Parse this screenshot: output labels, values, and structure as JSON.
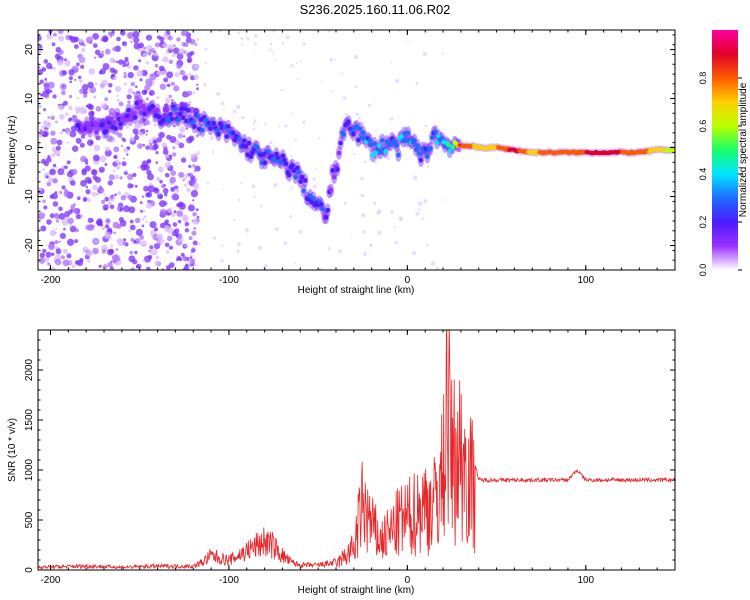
{
  "page_title": "S236.2025.160.11.06.R02",
  "colors": {
    "background": "#ffffff",
    "axis": "#000000",
    "snr_line": "#e8262a",
    "spectrogram_colormap": [
      "#ffffff",
      "#9b30ff",
      "#4a1cff",
      "#1f6bff",
      "#00e5ff",
      "#19ff6b",
      "#b9ff00",
      "#ffd000",
      "#ff5a00",
      "#e0002a",
      "#ff00a0"
    ]
  },
  "chart_data": [
    {
      "type": "heatmap",
      "title": "",
      "xlabel": "Height of straight line (km)",
      "ylabel": "Frequency (Hz)",
      "xlim": [
        -207,
        150
      ],
      "ylim": [
        -25,
        24
      ],
      "xticks": [
        -200,
        -100,
        0,
        100
      ],
      "yticks": [
        -20,
        -10,
        0,
        10,
        20
      ],
      "colorbar": {
        "label": "Normalized spectral amplitude",
        "range": [
          0.0,
          1.0
        ],
        "ticks": [
          0.0,
          0.2,
          0.4,
          0.6,
          0.8
        ]
      },
      "ridge": {
        "x": [
          -180,
          -170,
          -160,
          -150,
          -140,
          -130,
          -120,
          -110,
          -100,
          -90,
          -80,
          -70,
          -60,
          -55,
          -50,
          -45,
          -42,
          -38,
          -35,
          -32,
          -30,
          -25,
          -20,
          -15,
          -10,
          -5,
          0,
          5,
          10,
          15,
          20,
          25,
          30,
          40,
          50,
          60,
          70,
          80,
          90,
          100,
          110,
          120,
          130,
          140,
          150
        ],
        "y": [
          5,
          4.5,
          6,
          8,
          6.5,
          7,
          6,
          4,
          3,
          0,
          -2,
          -3,
          -6,
          -10,
          -12,
          -14,
          -6,
          -2,
          5,
          5,
          4,
          2,
          0,
          0,
          1,
          0,
          2,
          0,
          -2,
          3,
          1,
          0.5,
          0.5,
          0,
          0,
          -0.5,
          -1,
          -1,
          -1,
          -1,
          -1,
          -1,
          -1,
          -0.5,
          -0.5
        ],
        "amplitude": [
          0.2,
          0.25,
          0.2,
          0.2,
          0.25,
          0.3,
          0.3,
          0.3,
          0.3,
          0.3,
          0.3,
          0.3,
          0.3,
          0.3,
          0.3,
          0.25,
          0.25,
          0.25,
          0.3,
          0.35,
          0.35,
          0.35,
          0.4,
          0.4,
          0.35,
          0.4,
          0.4,
          0.35,
          0.35,
          0.35,
          0.45,
          0.55,
          0.85,
          0.7,
          0.75,
          0.9,
          0.7,
          0.85,
          0.75,
          0.85,
          0.9,
          0.85,
          0.8,
          0.7,
          0.6
        ]
      }
    },
    {
      "type": "line",
      "title": "",
      "xlabel": "Height of straight line (km)",
      "ylabel": "SNR (10 * v/v)",
      "xlim": [
        -207,
        150
      ],
      "ylim": [
        0,
        2400
      ],
      "xticks": [
        -200,
        -100,
        0,
        100
      ],
      "yticks": [
        0,
        500,
        1000,
        1500,
        2000
      ],
      "series": [
        {
          "x": [
            -207,
            -180,
            -160,
            -140,
            -120,
            -115,
            -110,
            -100,
            -90,
            -80,
            -75,
            -70,
            -65,
            -60,
            -50,
            -40,
            -30,
            -25,
            -20,
            -15,
            -10,
            -5,
            0,
            5,
            10,
            15,
            20,
            22,
            25,
            30,
            35,
            40,
            60,
            80,
            90,
            95,
            100,
            120,
            140,
            150
          ],
          "y": [
            30,
            40,
            30,
            40,
            40,
            80,
            150,
            100,
            200,
            300,
            250,
            150,
            80,
            50,
            50,
            80,
            300,
            900,
            600,
            400,
            500,
            650,
            700,
            800,
            900,
            900,
            1300,
            2400,
            1500,
            1600,
            1300,
            900,
            900,
            900,
            900,
            1000,
            900,
            900,
            900,
            900
          ]
        }
      ]
    }
  ]
}
